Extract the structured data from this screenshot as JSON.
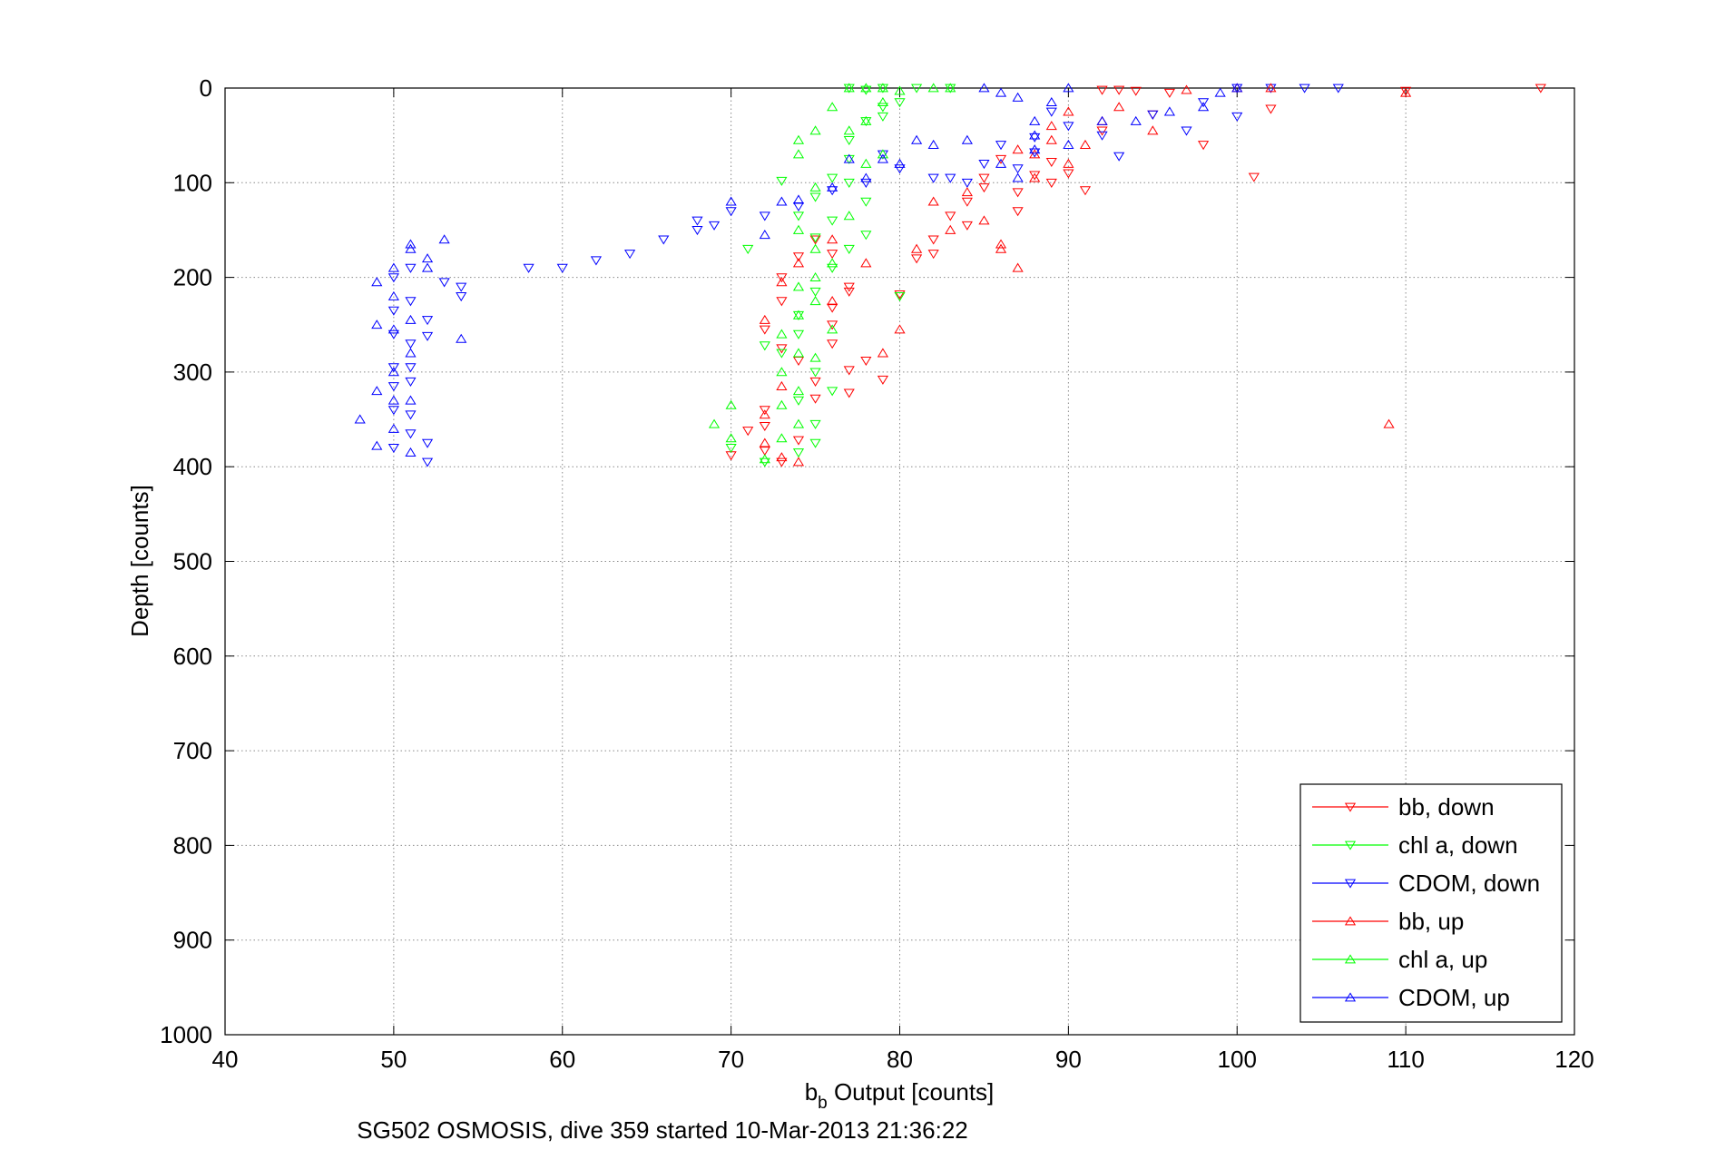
{
  "chart_data": {
    "type": "scatter",
    "title": "",
    "xlabel_main": "b",
    "xlabel_sub": "b",
    "xlabel_rest": " Output [counts]",
    "ylabel": "Depth [counts]",
    "caption": "SG502 OSMOSIS, dive 359 started 10-Mar-2013 21:36:22",
    "xlim": [
      40,
      120
    ],
    "ylim": [
      0,
      1000
    ],
    "y_reversed": true,
    "grid": true,
    "legend_position": "bottom-right",
    "xticks": [
      "40",
      "50",
      "60",
      "70",
      "80",
      "90",
      "100",
      "110",
      "120"
    ],
    "yticks": [
      "0",
      "100",
      "200",
      "300",
      "400",
      "500",
      "600",
      "700",
      "800",
      "900",
      "1000"
    ],
    "series": [
      {
        "name": "bb, down",
        "color": "#ff0000",
        "marker": "triangle-down",
        "points": [
          [
            118,
            0
          ],
          [
            110,
            3
          ],
          [
            102,
            22
          ],
          [
            101,
            94
          ],
          [
            98,
            60
          ],
          [
            96,
            5
          ],
          [
            94,
            3
          ],
          [
            93,
            2
          ],
          [
            92,
            2
          ],
          [
            95,
            28
          ],
          [
            92,
            45
          ],
          [
            91,
            108
          ],
          [
            90,
            90
          ],
          [
            89,
            78
          ],
          [
            89,
            100
          ],
          [
            88,
            92
          ],
          [
            87,
            130
          ],
          [
            87,
            110
          ],
          [
            86,
            75
          ],
          [
            85,
            95
          ],
          [
            85,
            105
          ],
          [
            84,
            120
          ],
          [
            84,
            145
          ],
          [
            83,
            135
          ],
          [
            82,
            160
          ],
          [
            82,
            175
          ],
          [
            81,
            180
          ],
          [
            80,
            218
          ],
          [
            79,
            308
          ],
          [
            78,
            288
          ],
          [
            77,
            322
          ],
          [
            77,
            298
          ],
          [
            76,
            270
          ],
          [
            76,
            250
          ],
          [
            76,
            232
          ],
          [
            77,
            215
          ],
          [
            77,
            210
          ],
          [
            76,
            175
          ],
          [
            75,
            160
          ],
          [
            74,
            178
          ],
          [
            73,
            200
          ],
          [
            73,
            225
          ],
          [
            72,
            255
          ],
          [
            73,
            275
          ],
          [
            72,
            340
          ],
          [
            72,
            357
          ],
          [
            72,
            383
          ],
          [
            73,
            395
          ],
          [
            74,
            372
          ],
          [
            75,
            310
          ],
          [
            74,
            288
          ],
          [
            75,
            328
          ],
          [
            70,
            388
          ],
          [
            71,
            362
          ]
        ]
      },
      {
        "name": "chl a, down",
        "color": "#00ff00",
        "marker": "triangle-down",
        "points": [
          [
            77,
            0
          ],
          [
            78,
            2
          ],
          [
            79,
            0
          ],
          [
            81,
            0
          ],
          [
            83,
            0
          ],
          [
            79,
            20
          ],
          [
            78,
            35
          ],
          [
            77,
            55
          ],
          [
            77,
            75
          ],
          [
            76,
            95
          ],
          [
            75,
            115
          ],
          [
            74,
            135
          ],
          [
            75,
            158
          ],
          [
            77,
            170
          ],
          [
            76,
            190
          ],
          [
            75,
            215
          ],
          [
            74,
            240
          ],
          [
            74,
            260
          ],
          [
            73,
            280
          ],
          [
            75,
            300
          ],
          [
            76,
            320
          ],
          [
            74,
            330
          ],
          [
            75,
            355
          ],
          [
            74,
            385
          ],
          [
            72,
            272
          ],
          [
            71,
            170
          ],
          [
            73,
            98
          ],
          [
            80,
            220
          ],
          [
            78,
            155
          ],
          [
            79,
            30
          ],
          [
            80,
            15
          ],
          [
            77,
            100
          ],
          [
            78,
            120
          ],
          [
            76,
            140
          ],
          [
            75,
            375
          ],
          [
            72,
            395
          ],
          [
            70,
            380
          ]
        ]
      },
      {
        "name": "CDOM, down",
        "color": "#0000ff",
        "marker": "triangle-down",
        "points": [
          [
            106,
            0
          ],
          [
            104,
            0
          ],
          [
            102,
            0
          ],
          [
            100,
            0
          ],
          [
            100,
            30
          ],
          [
            98,
            15
          ],
          [
            97,
            45
          ],
          [
            95,
            28
          ],
          [
            93,
            72
          ],
          [
            92,
            50
          ],
          [
            90,
            40
          ],
          [
            89,
            25
          ],
          [
            88,
            52
          ],
          [
            88,
            68
          ],
          [
            86,
            60
          ],
          [
            87,
            85
          ],
          [
            85,
            80
          ],
          [
            84,
            100
          ],
          [
            82,
            95
          ],
          [
            78,
            100
          ],
          [
            76,
            108
          ],
          [
            74,
            125
          ],
          [
            72,
            135
          ],
          [
            70,
            130
          ],
          [
            68,
            150
          ],
          [
            66,
            160
          ],
          [
            64,
            175
          ],
          [
            62,
            182
          ],
          [
            60,
            190
          ],
          [
            58,
            190
          ],
          [
            54,
            210
          ],
          [
            54,
            220
          ],
          [
            53,
            205
          ],
          [
            52,
            262
          ],
          [
            52,
            245
          ],
          [
            51,
            225
          ],
          [
            51,
            270
          ],
          [
            51,
            295
          ],
          [
            51,
            310
          ],
          [
            51,
            345
          ],
          [
            51,
            365
          ],
          [
            50,
            380
          ],
          [
            52,
            395
          ],
          [
            52,
            375
          ],
          [
            50,
            340
          ],
          [
            50,
            315
          ],
          [
            50,
            295
          ],
          [
            50,
            260
          ],
          [
            50,
            235
          ],
          [
            50,
            200
          ],
          [
            51,
            190
          ],
          [
            79,
            70
          ],
          [
            80,
            85
          ],
          [
            83,
            95
          ],
          [
            68,
            140
          ],
          [
            69,
            145
          ]
        ]
      },
      {
        "name": "bb, up",
        "color": "#ff0000",
        "marker": "triangle-up",
        "points": [
          [
            110,
            5
          ],
          [
            102,
            0
          ],
          [
            100,
            0
          ],
          [
            97,
            2
          ],
          [
            95,
            45
          ],
          [
            93,
            20
          ],
          [
            92,
            35
          ],
          [
            91,
            60
          ],
          [
            90,
            80
          ],
          [
            89,
            55
          ],
          [
            88,
            70
          ],
          [
            88,
            95
          ],
          [
            87,
            65
          ],
          [
            87,
            190
          ],
          [
            86,
            170
          ],
          [
            85,
            140
          ],
          [
            84,
            110
          ],
          [
            83,
            150
          ],
          [
            82,
            120
          ],
          [
            81,
            170
          ],
          [
            80,
            255
          ],
          [
            79,
            280
          ],
          [
            78,
            185
          ],
          [
            76,
            225
          ],
          [
            76,
            160
          ],
          [
            74,
            185
          ],
          [
            73,
            205
          ],
          [
            72,
            245
          ],
          [
            73,
            315
          ],
          [
            72,
            345
          ],
          [
            72,
            375
          ],
          [
            73,
            390
          ],
          [
            74,
            395
          ],
          [
            109,
            355
          ],
          [
            86,
            165
          ],
          [
            89,
            40
          ],
          [
            90,
            25
          ]
        ]
      },
      {
        "name": "chl a, up",
        "color": "#00ff00",
        "marker": "triangle-up",
        "points": [
          [
            77,
            0
          ],
          [
            78,
            0
          ],
          [
            79,
            0
          ],
          [
            80,
            3
          ],
          [
            82,
            0
          ],
          [
            83,
            0
          ],
          [
            79,
            15
          ],
          [
            78,
            35
          ],
          [
            77,
            45
          ],
          [
            76,
            20
          ],
          [
            75,
            45
          ],
          [
            74,
            55
          ],
          [
            74,
            70
          ],
          [
            75,
            105
          ],
          [
            74,
            150
          ],
          [
            75,
            170
          ],
          [
            74,
            210
          ],
          [
            75,
            225
          ],
          [
            74,
            240
          ],
          [
            73,
            260
          ],
          [
            74,
            280
          ],
          [
            73,
            300
          ],
          [
            74,
            320
          ],
          [
            73,
            335
          ],
          [
            74,
            355
          ],
          [
            73,
            370
          ],
          [
            70,
            335
          ],
          [
            69,
            355
          ],
          [
            72,
            392
          ],
          [
            75,
            200
          ],
          [
            76,
            185
          ],
          [
            77,
            135
          ],
          [
            78,
            80
          ],
          [
            79,
            70
          ],
          [
            76,
            255
          ],
          [
            75,
            285
          ],
          [
            70,
            370
          ]
        ]
      },
      {
        "name": "CDOM, up",
        "color": "#0000ff",
        "marker": "triangle-up",
        "points": [
          [
            100,
            0
          ],
          [
            99,
            5
          ],
          [
            98,
            20
          ],
          [
            96,
            25
          ],
          [
            94,
            35
          ],
          [
            92,
            35
          ],
          [
            90,
            0
          ],
          [
            89,
            15
          ],
          [
            88,
            35
          ],
          [
            87,
            10
          ],
          [
            86,
            5
          ],
          [
            85,
            0
          ],
          [
            84,
            55
          ],
          [
            82,
            60
          ],
          [
            81,
            55
          ],
          [
            80,
            80
          ],
          [
            79,
            75
          ],
          [
            78,
            95
          ],
          [
            77,
            75
          ],
          [
            76,
            105
          ],
          [
            74,
            118
          ],
          [
            73,
            120
          ],
          [
            72,
            155
          ],
          [
            70,
            120
          ],
          [
            54,
            265
          ],
          [
            53,
            160
          ],
          [
            52,
            180
          ],
          [
            51,
            165
          ],
          [
            50,
            190
          ],
          [
            49,
            205
          ],
          [
            49,
            250
          ],
          [
            49,
            320
          ],
          [
            48,
            350
          ],
          [
            49,
            378
          ],
          [
            51,
            385
          ],
          [
            50,
            360
          ],
          [
            50,
            330
          ],
          [
            50,
            300
          ],
          [
            50,
            255
          ],
          [
            50,
            220
          ],
          [
            51,
            170
          ],
          [
            51,
            245
          ],
          [
            51,
            280
          ],
          [
            51,
            330
          ],
          [
            52,
            190
          ],
          [
            88,
            50
          ],
          [
            88,
            65
          ],
          [
            86,
            80
          ],
          [
            87,
            95
          ],
          [
            90,
            60
          ]
        ]
      }
    ]
  }
}
